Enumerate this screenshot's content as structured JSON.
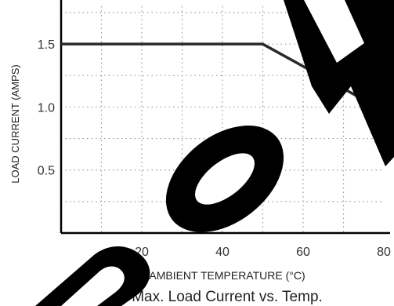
{
  "chart_data": {
    "type": "line",
    "title": "Max. Load Current vs. Temp.",
    "xlabel": "AMBIENT TEMPERATURE (°C)",
    "ylabel": "LOAD CURRENT (AMPS)",
    "xlim": [
      0,
      80
    ],
    "ylim": [
      0,
      1.8
    ],
    "xticks": [
      20,
      40,
      60,
      80
    ],
    "xtick_labels": [
      "20",
      "40",
      "60",
      "80"
    ],
    "yticks": [
      0.5,
      1.0,
      1.5
    ],
    "ytick_labels": [
      "0.5",
      "1.0",
      "1.5"
    ],
    "grid": true,
    "series": [
      {
        "x": [
          0,
          50,
          80
        ],
        "y": [
          1.5,
          1.5,
          0.97
        ],
        "color": "#2a2a2a"
      }
    ],
    "watermark": "SOV"
  }
}
